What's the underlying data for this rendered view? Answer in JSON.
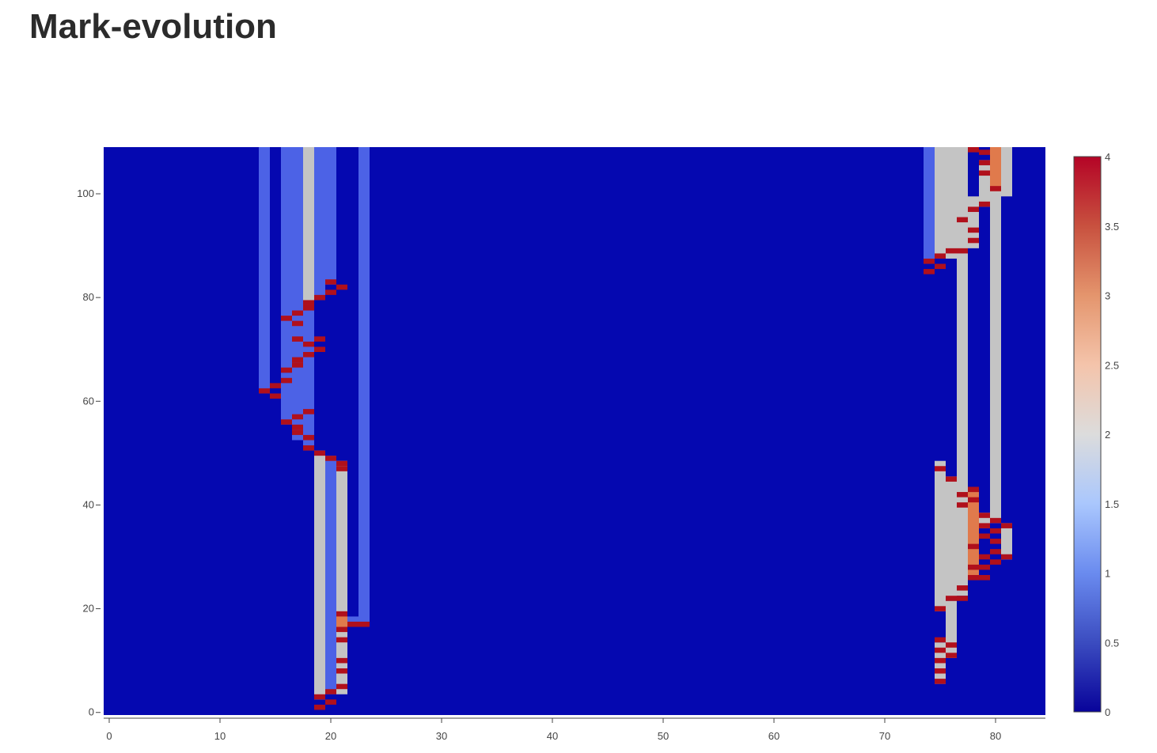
{
  "page": {
    "title": "Mark-evolution"
  },
  "colors": {
    "background": "#0508b0",
    "blue": "#4c62e6",
    "gray": "#c4c4c4",
    "orange": "#e07a4c",
    "red": "#b0101c",
    "colorscale": [
      "#08039a",
      "#3b4cc0",
      "#6a8bef",
      "#aac7fd",
      "#dcdcdc",
      "#f4c4ab",
      "#e4956d",
      "#c8513f",
      "#b40426"
    ]
  },
  "chart_data": {
    "type": "heatmap",
    "title": "",
    "xlabel": "",
    "ylabel": "",
    "xlim": [
      -0.5,
      84.5
    ],
    "ylim": [
      -0.5,
      109
    ],
    "x_ticks": [
      "0",
      "10",
      "20",
      "30",
      "40",
      "50",
      "60",
      "70",
      "80"
    ],
    "y_ticks": [
      "0",
      "20",
      "40",
      "60",
      "80",
      "100"
    ],
    "colorbar": {
      "min": 0,
      "max": 4,
      "ticks": [
        "0",
        "0.5",
        "1",
        "1.5",
        "2",
        "2.5",
        "3",
        "3.5",
        "4"
      ]
    },
    "background_value": 0,
    "cells": [
      {
        "x": 14,
        "y0": 62,
        "y1": 109,
        "v": 1
      },
      {
        "x": 16,
        "y0": 66,
        "y1": 109,
        "v": 1
      },
      {
        "x": 16,
        "y0": 56,
        "y1": 65,
        "v": 1
      },
      {
        "x": 17,
        "y0": 53,
        "y1": 109,
        "v": 1
      },
      {
        "x": 18,
        "y0": 79,
        "y1": 109,
        "v": 2
      },
      {
        "x": 18,
        "y0": 51,
        "y1": 78,
        "v": 1
      },
      {
        "x": 19,
        "y0": 80,
        "y1": 109,
        "v": 1
      },
      {
        "x": 19,
        "y0": 3,
        "y1": 50,
        "v": 2
      },
      {
        "x": 20,
        "y0": 83,
        "y1": 109,
        "v": 1
      },
      {
        "x": 20,
        "y0": 4,
        "y1": 49,
        "v": 1
      },
      {
        "x": 21,
        "y0": 4,
        "y1": 48,
        "v": 2
      },
      {
        "x": 21,
        "y0": 17,
        "y1": 19,
        "v": 3
      },
      {
        "x": 22,
        "y0": 17,
        "y1": 18,
        "v": 1
      },
      {
        "x": 23,
        "y0": 17,
        "y1": 109,
        "v": 1
      },
      {
        "x": 74,
        "y0": 87,
        "y1": 109,
        "v": 1
      },
      {
        "x": 75,
        "y0": 20,
        "y1": 48,
        "v": 2
      },
      {
        "x": 75,
        "y0": 88,
        "y1": 109,
        "v": 2
      },
      {
        "x": 75,
        "y0": 6,
        "y1": 13,
        "v": 2
      },
      {
        "x": 76,
        "y0": 88,
        "y1": 109,
        "v": 2
      },
      {
        "x": 76,
        "y0": 22,
        "y1": 45,
        "v": 2
      },
      {
        "x": 76,
        "y0": 11,
        "y1": 21,
        "v": 2
      },
      {
        "x": 77,
        "y0": 89,
        "y1": 109,
        "v": 2
      },
      {
        "x": 77,
        "y0": 42,
        "y1": 88,
        "v": 2
      },
      {
        "x": 77,
        "y0": 23,
        "y1": 43,
        "v": 2
      },
      {
        "x": 78,
        "y0": 26,
        "y1": 42,
        "v": 3
      },
      {
        "x": 78,
        "y0": 90,
        "y1": 99,
        "v": 2
      },
      {
        "x": 79,
        "y0": 98,
        "y1": 106,
        "v": 2
      },
      {
        "x": 79,
        "y0": 36,
        "y1": 38,
        "v": 2
      },
      {
        "x": 80,
        "y0": 37,
        "y1": 109,
        "v": 2
      },
      {
        "x": 80,
        "y0": 101,
        "y1": 109,
        "v": 3
      },
      {
        "x": 81,
        "y0": 100,
        "y1": 109,
        "v": 2
      },
      {
        "x": 81,
        "y0": 30,
        "y1": 36,
        "v": 2
      }
    ],
    "marks": [
      {
        "x": 14,
        "ys": [
          62
        ]
      },
      {
        "x": 15,
        "ys": [
          61,
          63
        ]
      },
      {
        "x": 16,
        "ys": [
          56,
          64,
          66,
          76
        ]
      },
      {
        "x": 17,
        "ys": [
          54,
          55,
          57,
          67,
          68,
          72,
          75,
          77
        ]
      },
      {
        "x": 18,
        "ys": [
          51,
          53,
          58,
          69,
          71,
          78,
          79
        ]
      },
      {
        "x": 19,
        "ys": [
          1,
          3,
          50,
          70,
          72,
          80
        ]
      },
      {
        "x": 20,
        "ys": [
          2,
          4,
          49,
          81,
          83
        ]
      },
      {
        "x": 21,
        "ys": [
          5,
          8,
          10,
          14,
          16,
          19,
          47,
          48,
          82
        ]
      },
      {
        "x": 22,
        "ys": [
          17
        ]
      },
      {
        "x": 23,
        "ys": [
          17
        ]
      },
      {
        "x": 74,
        "ys": [
          85,
          87
        ]
      },
      {
        "x": 75,
        "ys": [
          6,
          8,
          10,
          12,
          14,
          20,
          47,
          86,
          88
        ]
      },
      {
        "x": 76,
        "ys": [
          11,
          13,
          22,
          45,
          89
        ]
      },
      {
        "x": 77,
        "ys": [
          22,
          24,
          40,
          42,
          89,
          95
        ]
      },
      {
        "x": 78,
        "ys": [
          26,
          28,
          32,
          41,
          43,
          91,
          93,
          97,
          109
        ]
      },
      {
        "x": 79,
        "ys": [
          26,
          28,
          30,
          34,
          36,
          38,
          98,
          104,
          106,
          108
        ]
      },
      {
        "x": 80,
        "ys": [
          29,
          31,
          33,
          35,
          37,
          101
        ]
      },
      {
        "x": 81,
        "ys": [
          30,
          36
        ]
      }
    ]
  }
}
